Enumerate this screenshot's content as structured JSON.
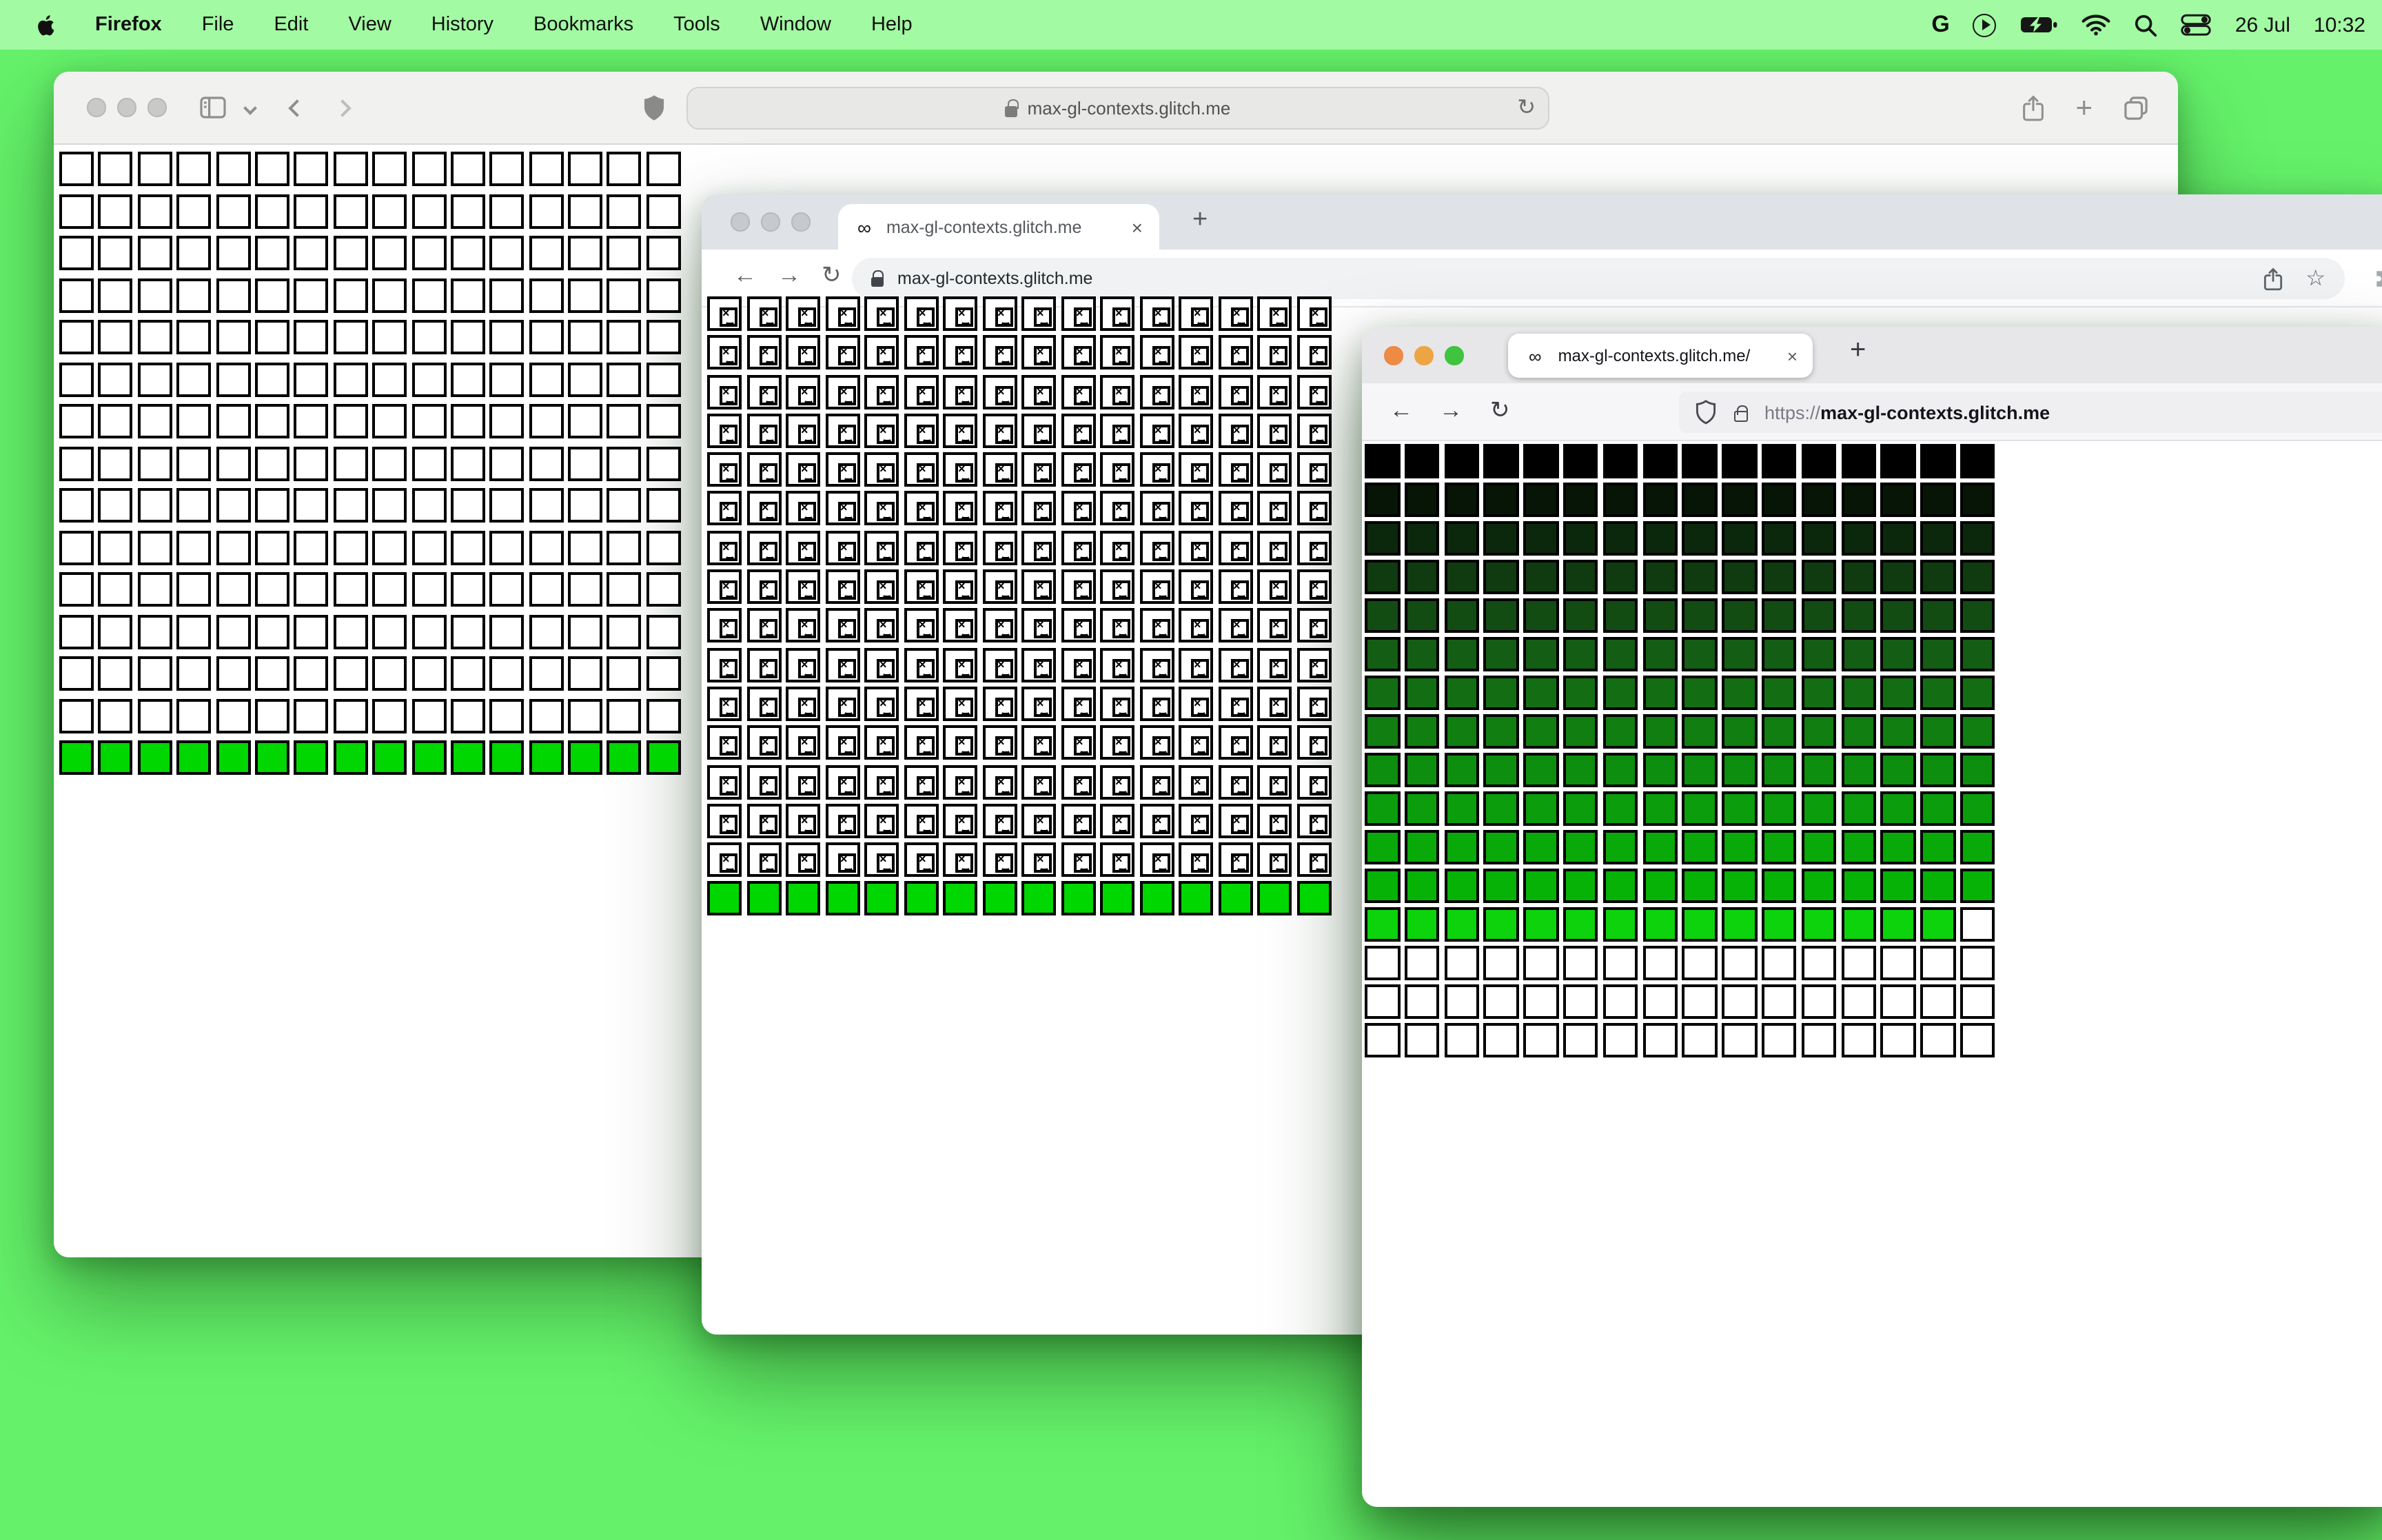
{
  "menu_bar": {
    "app": "Firefox",
    "items": [
      "File",
      "Edit",
      "View",
      "History",
      "Bookmarks",
      "Tools",
      "Window",
      "Help"
    ],
    "status": {
      "date": "26 Jul",
      "time": "10:32"
    }
  },
  "safari_window": {
    "url": "max-gl-contexts.glitch.me"
  },
  "chrome_window": {
    "tab_title": "max-gl-contexts.glitch.me",
    "url": "max-gl-contexts.glitch.me",
    "tab_favicon": "∞",
    "close_glyph": "×",
    "new_tab_glyph": "+",
    "back_glyph": "←",
    "forward_glyph": "→",
    "reload_glyph": "↻",
    "star_glyph": "☆"
  },
  "firefox_window": {
    "tab_title": "max-gl-contexts.glitch.me/",
    "url_scheme": "https://",
    "url_domain": "max-gl-contexts.glitch.me",
    "tab_favicon": "∞",
    "close_glyph": "×",
    "new_tab_glyph": "+",
    "back_glyph": "←",
    "forward_glyph": "→",
    "reload_glyph": "↻"
  },
  "safari_toolbar": {
    "reload_glyph": "↻",
    "new_tab_glyph": "+"
  },
  "grids": {
    "safari": {
      "cols": 16,
      "white_rows": 14,
      "green_rows": 1,
      "green_color": "#00D600"
    },
    "chrome": {
      "cols": 16,
      "broken_image_rows": 15,
      "green_rows": 1,
      "green_color": "#00D600"
    },
    "firefox": {
      "cols": 16,
      "gradient_row_colors": [
        "#000000",
        "#071507",
        "#0C280C",
        "#103A10",
        "#134C13",
        "#145D14",
        "#136E13",
        "#117E11",
        "#0E8E0E",
        "#0B9D0B",
        "#08A908",
        "#06B206"
      ],
      "bright_row": {
        "color": "#0CD30C",
        "green_cells": 15,
        "white_cells": 1
      },
      "white_rows": 3
    }
  },
  "colors": {
    "desktop": "#65F26A",
    "menubar": "#A2FAA2",
    "ff_light_red": "#ED8A44",
    "ff_light_yellow": "#EDA544",
    "ff_light_green": "#40C33F"
  }
}
